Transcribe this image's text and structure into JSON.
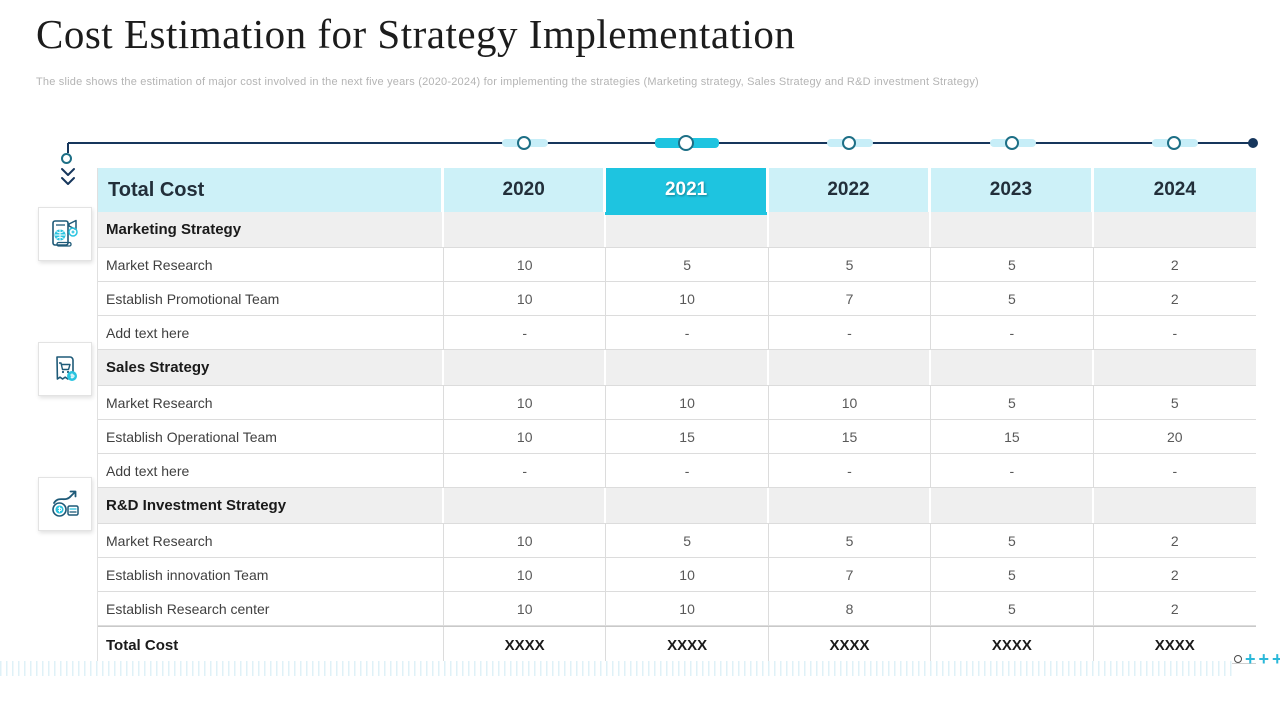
{
  "slide": {
    "title": "Cost Estimation for Strategy Implementation",
    "subtitle": "The slide shows the estimation of major cost involved in the next five years (2020-2024) for implementing the strategies (Marketing strategy, Sales Strategy and R&D investment Strategy)"
  },
  "colors": {
    "accent_cyan": "#1EC4E0",
    "light_cyan": "#CDF1F8",
    "navy_line": "#16365C",
    "circle_stroke": "#1D6F86",
    "section_gray": "#EFEFEF",
    "border_gray": "#DCDCDC"
  },
  "table": {
    "header": {
      "label": "Total Cost",
      "years": [
        "2020",
        "2021",
        "2022",
        "2023",
        "2024"
      ],
      "highlighted_year": "2021"
    },
    "sections": [
      {
        "name": "Marketing Strategy",
        "rows": [
          {
            "label": "Market Research",
            "values": [
              "10",
              "5",
              "5",
              "5",
              "2"
            ]
          },
          {
            "label": "Establish Promotional Team",
            "values": [
              "10",
              "10",
              "7",
              "5",
              "2"
            ]
          },
          {
            "label": "Add text here",
            "values": [
              "-",
              "-",
              "-",
              "-",
              "-"
            ]
          }
        ]
      },
      {
        "name": "Sales Strategy",
        "rows": [
          {
            "label": "Market Research",
            "values": [
              "10",
              "10",
              "10",
              "5",
              "5"
            ]
          },
          {
            "label": "Establish Operational Team",
            "values": [
              "10",
              "15",
              "15",
              "15",
              "20"
            ]
          },
          {
            "label": "Add text here",
            "values": [
              "-",
              "-",
              "-",
              "-",
              "-"
            ]
          }
        ]
      },
      {
        "name": "R&D Investment Strategy",
        "rows": [
          {
            "label": "Market Research",
            "values": [
              "10",
              "5",
              "5",
              "5",
              "2"
            ]
          },
          {
            "label": "Establish innovation Team",
            "values": [
              "10",
              "10",
              "7",
              "5",
              "2"
            ]
          },
          {
            "label": "Establish Research center",
            "values": [
              "10",
              "10",
              "8",
              "5",
              "2"
            ]
          }
        ]
      }
    ],
    "footer": {
      "label": "Total Cost",
      "values": [
        "XXXX",
        "XXXX",
        "XXXX",
        "XXXX",
        "XXXX"
      ]
    }
  },
  "icons": [
    {
      "name": "marketing-strategy-icon"
    },
    {
      "name": "sales-strategy-icon"
    },
    {
      "name": "rd-investment-strategy-icon"
    }
  ],
  "decor": {
    "plus_signs": "+++"
  }
}
